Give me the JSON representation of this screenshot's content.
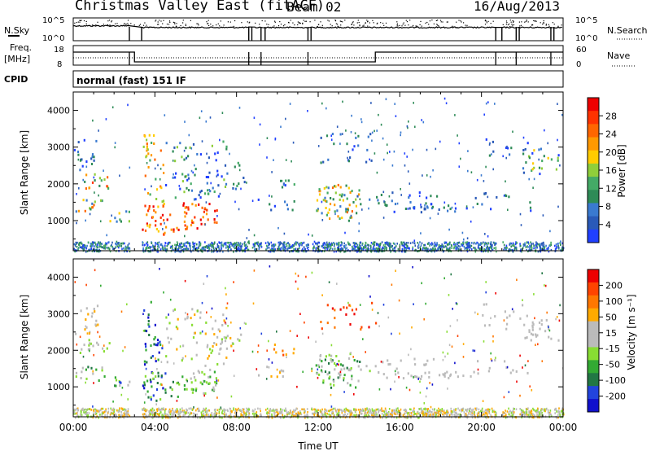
{
  "header": {
    "station": "Christmas Valley East (fitACF)",
    "beam": "Beam 02",
    "date": "16/Aug/2013"
  },
  "top_panels": {
    "nsky_label": "N.Sky",
    "nsearch_label": "N.Search",
    "nsky_ticks": [
      "10^5",
      "10^0"
    ],
    "freq_label": "Freq.",
    "freq_unit": "[MHz]",
    "freq_ticks": [
      "18",
      "8"
    ],
    "nave_label": "Nave",
    "nave_ticks": [
      "60",
      "0"
    ],
    "cpid_label": "CPID",
    "cpid_text": "normal (fast) 151 IF"
  },
  "colors": {
    "power_scale": [
      "#2040ff",
      "#2a5ab8",
      "#3a7ad0",
      "#2e8b57",
      "#44aa66",
      "#8fce3a",
      "#ffcc00",
      "#ff9900",
      "#ff6600",
      "#ff3300",
      "#ee0000"
    ],
    "velocity_scale": [
      "#1010cc",
      "#2244dd",
      "#227744",
      "#33aa33",
      "#88dd33",
      "#bbbbbb",
      "#bbbbbb",
      "#ffaa00",
      "#ff7700",
      "#ff4400",
      "#ee0000"
    ]
  },
  "chart_data": [
    {
      "type": "heatmap",
      "name": "power",
      "ylabel": "Slant Range [km]",
      "xlabel": "Time UT",
      "ylim": [
        180,
        4500
      ],
      "xlim": [
        0,
        24
      ],
      "y_ticks": [
        "1000",
        "2000",
        "3000",
        "4000"
      ],
      "x_ticks": [
        "00:00",
        "04:00",
        "08:00",
        "12:00",
        "16:00",
        "20:00",
        "00:00"
      ],
      "colorbar_label": "Power [dB]",
      "colorbar_ticks": [
        "4",
        "8",
        "12",
        "16",
        "20",
        "24",
        "28"
      ],
      "clim": [
        0,
        30
      ]
    },
    {
      "type": "heatmap",
      "name": "velocity",
      "ylabel": "Slant Range [km]",
      "xlabel": "Time UT",
      "ylim": [
        180,
        4500
      ],
      "xlim": [
        0,
        24
      ],
      "y_ticks": [
        "1000",
        "2000",
        "3000",
        "4000"
      ],
      "x_ticks": [
        "00:00",
        "04:00",
        "08:00",
        "12:00",
        "16:00",
        "20:00",
        "00:00"
      ],
      "colorbar_label": "Velocity [m s⁻¹]",
      "colorbar_ticks": [
        "200",
        "100",
        "50",
        "15",
        "-15",
        "-50",
        "-100",
        "-200"
      ],
      "clim": [
        -250,
        250
      ]
    }
  ]
}
